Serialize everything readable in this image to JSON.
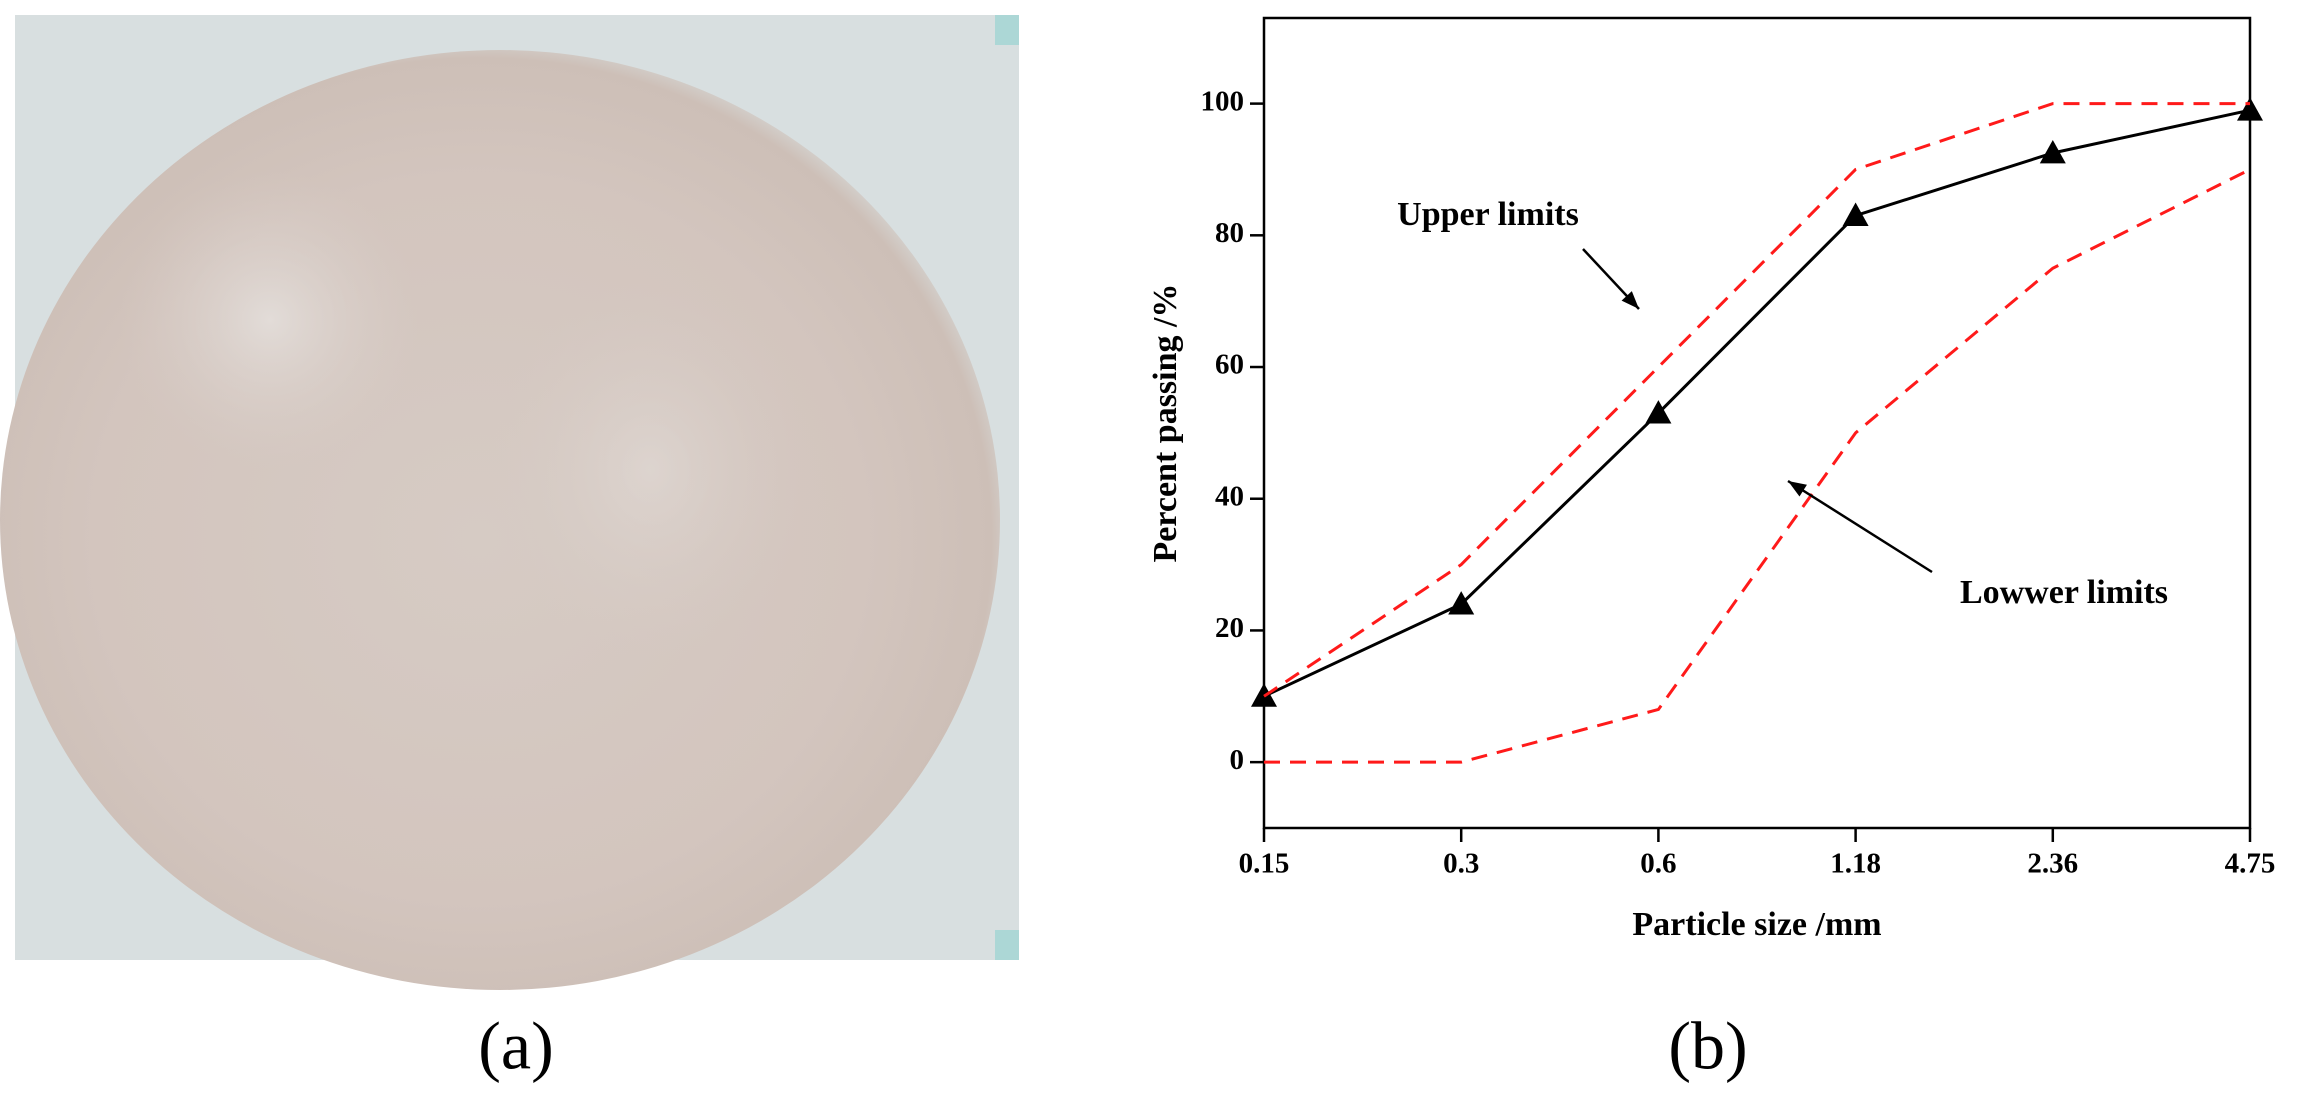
{
  "photo_label": "(a)",
  "chart_data": {
    "type": "line",
    "label": "(b)",
    "x_label": "Particle size /mm",
    "y_label": "Percent passing /%",
    "categories": [
      "0.15",
      "0.3",
      "0.6",
      "1.18",
      "2.36",
      "4.75"
    ],
    "series": [
      {
        "color": "#000000",
        "line_style": "solid",
        "marker": "triangle",
        "values": [
          10,
          24,
          53,
          83,
          92.5,
          99
        ]
      },
      {
        "name": "Upper limits",
        "color": "#ff1a1a",
        "line_style": "dashed",
        "values": [
          10,
          30,
          60,
          90,
          100,
          100
        ]
      },
      {
        "name": "Lowwer limits",
        "color": "#ff1a1a",
        "line_style": "dashed",
        "values": [
          0,
          0,
          8,
          50,
          75,
          90
        ]
      }
    ],
    "ylim": [
      -10,
      113
    ],
    "yticks": [
      0,
      20,
      40,
      60,
      80,
      100
    ]
  }
}
